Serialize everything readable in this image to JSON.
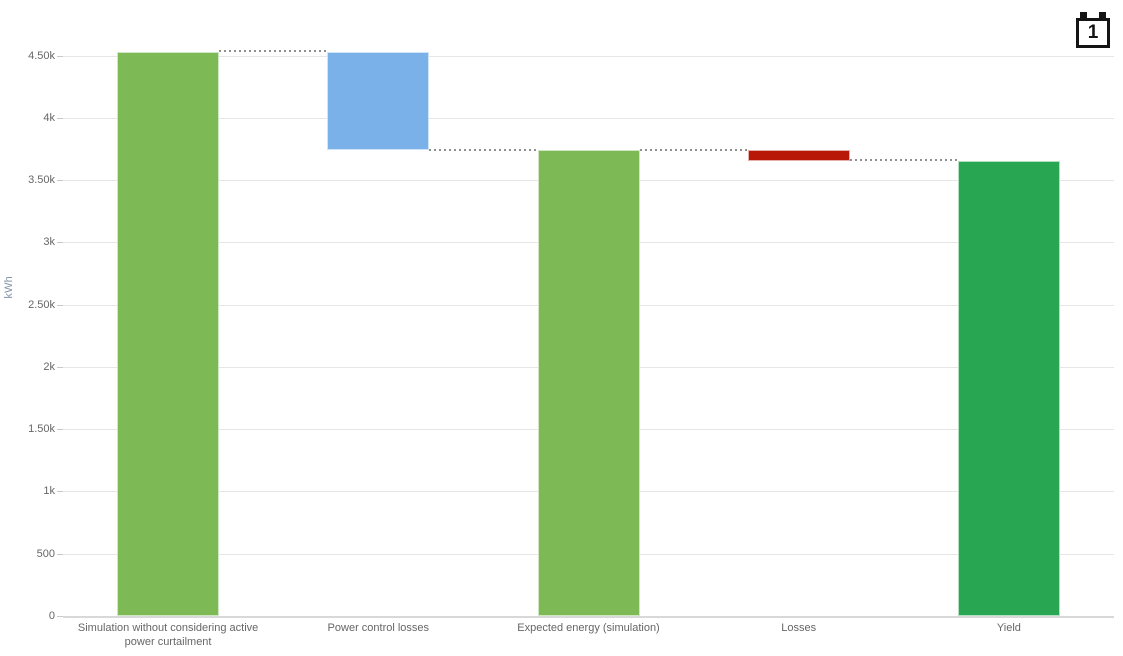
{
  "header": {
    "calendar_button": {
      "badge": "1"
    }
  },
  "chart_data": {
    "type": "waterfall",
    "title": "",
    "xlabel": "",
    "ylabel": "kWh",
    "unit": "kWh",
    "ylim": [
      0,
      4700
    ],
    "grid": true,
    "legend_position": "none",
    "yticks": [
      {
        "value": 0,
        "label": "0"
      },
      {
        "value": 500,
        "label": "500"
      },
      {
        "value": 1000,
        "label": "1k"
      },
      {
        "value": 1500,
        "label": "1.50k"
      },
      {
        "value": 2000,
        "label": "2k"
      },
      {
        "value": 2500,
        "label": "2.50k"
      },
      {
        "value": 3000,
        "label": "3k"
      },
      {
        "value": 3500,
        "label": "3.50k"
      },
      {
        "value": 4000,
        "label": "4k"
      },
      {
        "value": 4500,
        "label": "4.50k"
      }
    ],
    "categories": [
      "Simulation without considering active power curtailment",
      "Power control losses",
      "Expected energy (simulation)",
      "Losses",
      "Yield"
    ],
    "points": [
      {
        "label": "Simulation without considering active power curtailment",
        "kind": "total",
        "from": 0,
        "to": 4530,
        "value": 4530,
        "color": "#7DB954"
      },
      {
        "label": "Power control losses",
        "kind": "decrease",
        "from": 3740,
        "to": 4530,
        "value": -790,
        "color": "#7AB1E8"
      },
      {
        "label": "Expected energy (simulation)",
        "kind": "total",
        "from": 0,
        "to": 3740,
        "value": 3740,
        "color": "#7DB954"
      },
      {
        "label": "Losses",
        "kind": "decrease",
        "from": 3655,
        "to": 3740,
        "value": -85,
        "color": "#B81807"
      },
      {
        "label": "Yield",
        "kind": "total",
        "from": 0,
        "to": 3655,
        "value": 3655,
        "color": "#28A652"
      }
    ],
    "colors": {
      "positive_green": "#7DB954",
      "intermediate_blue": "#7AB1E8",
      "loss_red": "#B81807",
      "yield_green": "#28A652",
      "connector": "#8F8F8F",
      "grid": "#E6E6E6",
      "axis_line": "#D8D8D8",
      "tick_label": "#666666",
      "axis_title": "#8494AB"
    }
  }
}
